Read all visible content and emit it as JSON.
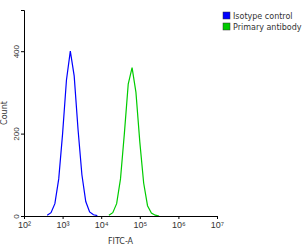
{
  "chart_data": {
    "type": "line",
    "x_label": "FITC-A",
    "y_label": "Count",
    "log": "x",
    "legend": "right",
    "x": [
      398,
      501,
      631,
      794,
      1000,
      1259,
      1585,
      1995,
      2512,
      3162,
      3981,
      5012,
      6310,
      7943,
      10000,
      12589,
      15849,
      19953,
      25119,
      31623,
      39811,
      50119,
      63096,
      79433,
      100000,
      125893,
      158489,
      199526,
      251189,
      316228
    ],
    "series": [
      {
        "name": "Isotype control",
        "color": "#0000ff",
        "values": [
          2,
          8,
          30,
          90,
          200,
          330,
          400,
          340,
          210,
          100,
          35,
          10,
          3,
          1,
          null,
          null,
          null,
          null,
          null,
          null,
          null,
          null,
          null,
          null,
          null,
          null,
          null,
          null,
          null,
          null
        ]
      },
      {
        "name": "Primary antibody",
        "color": "#00cc00",
        "values": [
          null,
          null,
          null,
          null,
          null,
          null,
          null,
          null,
          null,
          null,
          null,
          null,
          null,
          null,
          null,
          null,
          2,
          8,
          30,
          90,
          200,
          320,
          360,
          300,
          180,
          80,
          25,
          7,
          2,
          0
        ]
      }
    ],
    "xlim": [
      100,
      10000000
    ],
    "xticks": [
      {
        "value": 100,
        "label": "10²"
      },
      {
        "value": 1000,
        "label": "10³"
      },
      {
        "value": 10000,
        "label": "10⁴"
      },
      {
        "value": 100000,
        "label": "10⁵"
      },
      {
        "value": 1000000,
        "label": "10⁶"
      },
      {
        "value": 10000000,
        "label": "10⁷"
      }
    ],
    "ylim": [
      0,
      500
    ],
    "yticks": [
      0,
      200,
      400
    ]
  }
}
